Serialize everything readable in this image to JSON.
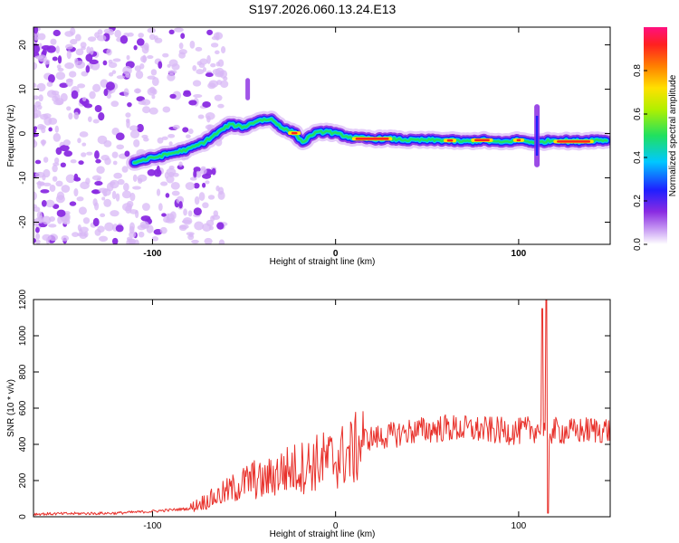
{
  "title": "S197.2026.060.13.24.E13",
  "chart_data": [
    {
      "type": "heatmap",
      "name": "spectrogram",
      "xlabel": "Height of straight line (km)",
      "ylabel": "Frequency (Hz)",
      "xlim": [
        -165,
        150
      ],
      "ylim": [
        -25,
        24
      ],
      "x_ticks": [
        -100,
        0,
        100
      ],
      "y_ticks": [
        -20,
        -10,
        0,
        10,
        20
      ],
      "colorbar": {
        "label": "Normalized spectral amplitude",
        "range": [
          0,
          1
        ],
        "ticks": [
          "0.0",
          "0.2",
          "0.4",
          "0.6",
          "0.8"
        ]
      },
      "ridge": {
        "x": [
          -110,
          -100,
          -90,
          -80,
          -72,
          -65,
          -58,
          -50,
          -42,
          -35,
          -28,
          -22,
          -18,
          -12,
          -5,
          0,
          10,
          20,
          30,
          40,
          50,
          60,
          70,
          80,
          90,
          100,
          110,
          120,
          130,
          140,
          148
        ],
        "y": [
          -6.5,
          -5.5,
          -4.5,
          -3.5,
          -2,
          0,
          2,
          1.5,
          3,
          3.2,
          1,
          0,
          -2,
          0,
          0.5,
          0,
          -1,
          -1.2,
          -1.2,
          -1.5,
          -1.5,
          -1.5,
          -1.8,
          -1.5,
          -2,
          -1.5,
          -2,
          -1.5,
          -1.8,
          -1.5,
          -1.5
        ]
      }
    },
    {
      "type": "line",
      "name": "snr",
      "xlabel": "Height of straight line (km)",
      "ylabel": "SNR (10 * v/v)",
      "xlim": [
        -165,
        150
      ],
      "ylim": [
        0,
        1200
      ],
      "x_ticks": [
        -100,
        0,
        100
      ],
      "y_ticks": [
        0,
        200,
        400,
        600,
        800,
        1000,
        1200
      ],
      "color": "#e8302a",
      "baseline": {
        "x": [
          -165,
          -120,
          -100,
          -80,
          -75,
          -65,
          -55,
          -45,
          -40,
          -30,
          -20,
          -10,
          0,
          10,
          15,
          25,
          40,
          60,
          80,
          100,
          105,
          112,
          115,
          120,
          130,
          140,
          150
        ],
        "y": [
          15,
          20,
          30,
          45,
          70,
          110,
          160,
          210,
          190,
          250,
          270,
          300,
          320,
          360,
          430,
          440,
          470,
          490,
          480,
          470,
          480,
          490,
          470,
          475,
          470,
          480,
          480
        ]
      },
      "spikes": [
        {
          "x": 113,
          "y": 1150
        },
        {
          "x": 115,
          "y": 1200
        },
        {
          "x": 116,
          "y": 20
        }
      ]
    }
  ]
}
